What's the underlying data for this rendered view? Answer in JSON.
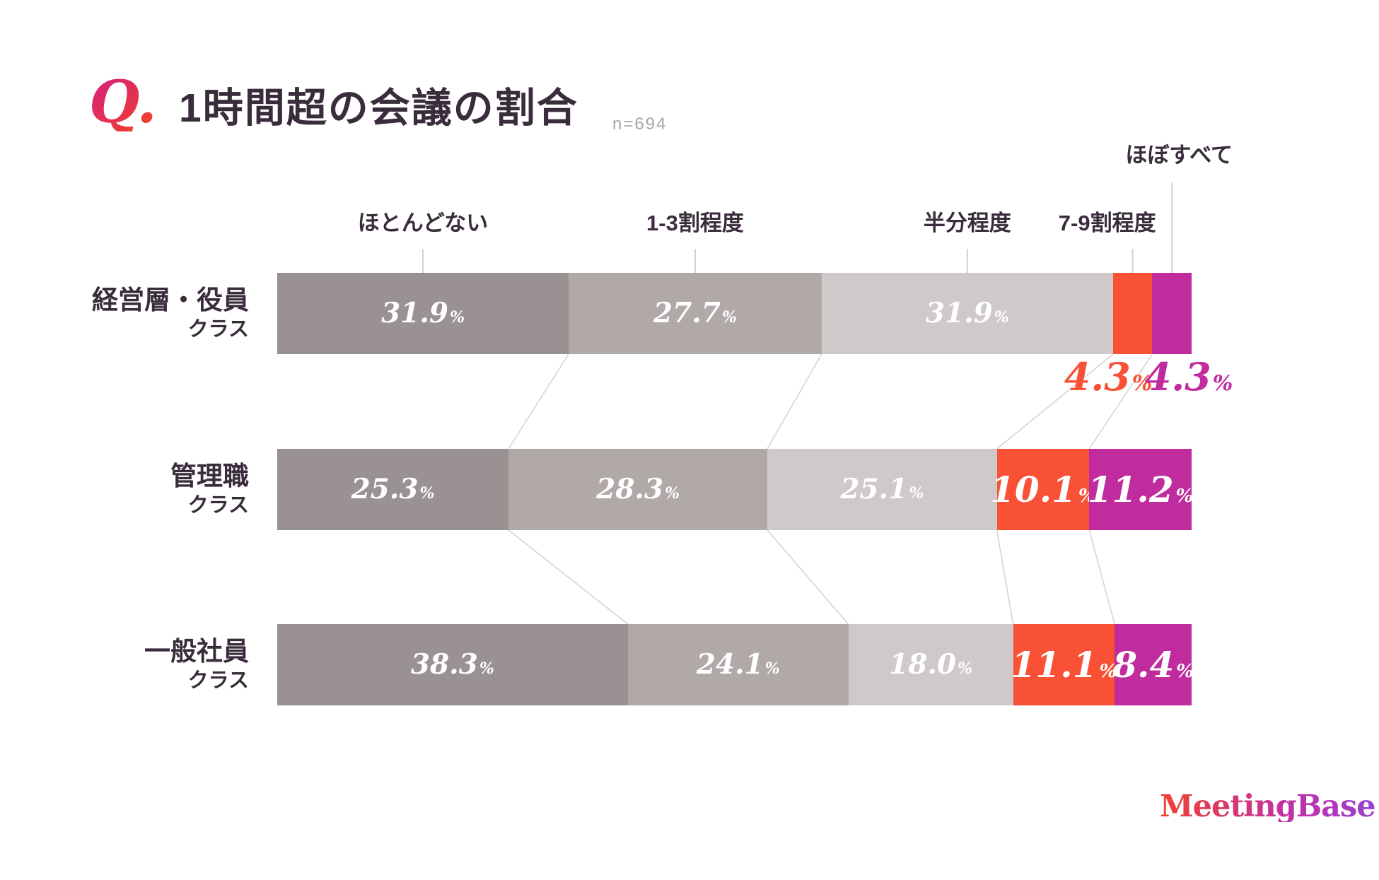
{
  "header": {
    "q_mark": "Q.",
    "title": "1時間超の会議の割合",
    "sample_size": "n=694"
  },
  "logo": {
    "text": "MeetingBase",
    "triangle_icon": "▲"
  },
  "colors": {
    "text_dark": "#392c3b",
    "muted_gray": "#a9a4a4",
    "guide_line": "#d6d1d1",
    "accent_orange": "#f95136",
    "accent_magenta": "#c02b9e",
    "q_gradient": [
      "#d4217c",
      "#f03e31"
    ],
    "logo_gradient": [
      "#ef4130",
      "#c031a8",
      "#9b3fd1"
    ]
  },
  "chart_data": {
    "type": "bar",
    "stacked": true,
    "orientation": "horizontal",
    "title": "1時間超の会議の割合",
    "sample_size": 694,
    "unit": "%",
    "value_suffix": "%",
    "categories": [
      "ほとんどない",
      "1-3割程度",
      "半分程度",
      "7-9割程度",
      "ほぼすべて"
    ],
    "segment_colors": [
      "#9a9292",
      "#b1a8a8",
      "#cfc9c9",
      "#f95136",
      "#c02b9e"
    ],
    "series": [
      {
        "name": "経営層・役員",
        "name_suffix": "クラス",
        "values": [
          31.9,
          27.7,
          31.9,
          4.3,
          4.3
        ]
      },
      {
        "name": "管理職",
        "name_suffix": "クラス",
        "values": [
          25.3,
          28.3,
          25.1,
          10.1,
          11.2
        ]
      },
      {
        "name": "一般社員",
        "name_suffix": "クラス",
        "values": [
          38.3,
          24.1,
          18.0,
          11.1,
          8.4
        ]
      }
    ],
    "notes": "row-1 の 7-9割程度 / ほぼすべて の値はバー下にコールアウト表示",
    "legend_position": "above-bars",
    "grid": false
  }
}
